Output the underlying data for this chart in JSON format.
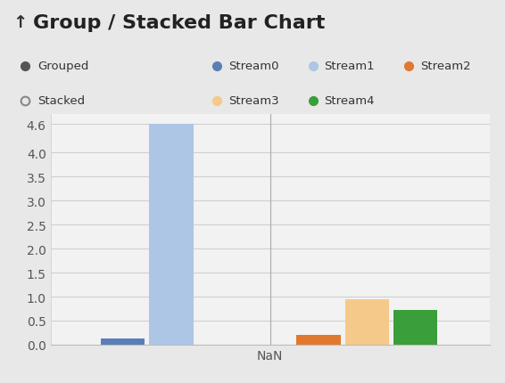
{
  "title": "Group / Stacked Bar Chart",
  "title_arrow": "↑",
  "xlabel": "NaN",
  "ylim": [
    0,
    4.8
  ],
  "yticks": [
    0.0,
    0.5,
    1.0,
    1.5,
    2.0,
    2.5,
    3.0,
    3.5,
    4.0,
    4.6
  ],
  "ytick_labels": [
    "0.0",
    "0.5",
    "1.0",
    "1.5",
    "2.0",
    "2.5",
    "3.0",
    "3.5",
    "4.0",
    "4.6"
  ],
  "background_color": "#e8e8e8",
  "plot_bg_color": "#f2f2f2",
  "header_bg_color": "#d8d8d8",
  "legend_left": [
    {
      "label": "Grouped",
      "color": "#555555",
      "filled": true
    },
    {
      "label": "Stacked",
      "color": "#aaaaaa",
      "filled": false
    }
  ],
  "legend_right": [
    {
      "label": "Stream0",
      "color": "#5b7fb5"
    },
    {
      "label": "Stream1",
      "color": "#adc6e5"
    },
    {
      "label": "Stream2",
      "color": "#e07830"
    },
    {
      "label": "Stream3",
      "color": "#f5c98a"
    },
    {
      "label": "Stream4",
      "color": "#3a9e3a"
    }
  ],
  "left_bars": [
    {
      "label": "Stream0",
      "value": 0.12,
      "color": "#5b7fb5"
    },
    {
      "label": "Stream1",
      "value": 4.6,
      "color": "#adc6e5"
    }
  ],
  "right_bars": [
    {
      "label": "Stream2",
      "value": 0.2,
      "color": "#e07830"
    },
    {
      "label": "Stream3",
      "value": 0.95,
      "color": "#f5c98a"
    },
    {
      "label": "Stream4",
      "value": 0.73,
      "color": "#3a9e3a"
    }
  ],
  "title_fontsize": 16,
  "legend_fontsize": 9.5,
  "tick_fontsize": 10
}
